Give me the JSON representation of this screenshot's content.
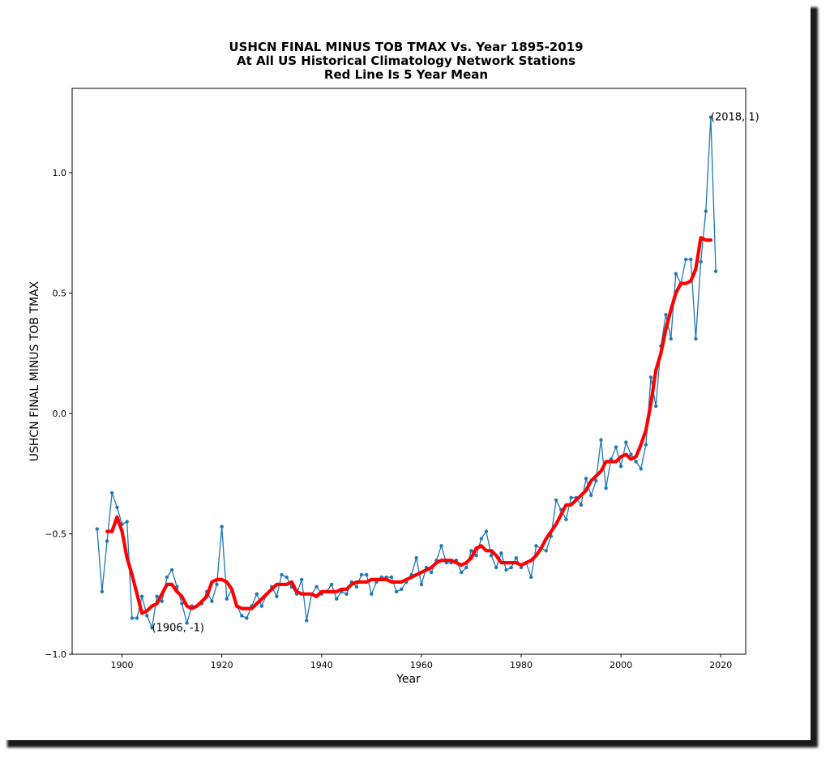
{
  "chart_data": {
    "type": "line",
    "title": [
      "USHCN FINAL MINUS TOB TMAX Vs. Year 1895-2019",
      "At All US Historical Climatology Network Stations",
      "Red Line Is 5 Year Mean"
    ],
    "xlabel": "Year",
    "ylabel": "USHCN FINAL MINUS TOB TMAX",
    "xlim": [
      1890,
      2025
    ],
    "ylim": [
      -1.0,
      1.35
    ],
    "xticks": [
      1900,
      1920,
      1940,
      1960,
      1980,
      2000,
      2020
    ],
    "xtick_labels": [
      "1900",
      "1920",
      "1940",
      "1960",
      "1980",
      "2000",
      "2020"
    ],
    "yticks": [
      -1.0,
      -0.5,
      0.0,
      0.5,
      1.0
    ],
    "ytick_labels": [
      "−1.0",
      "−0.5",
      "0.0",
      "0.5",
      "1.0"
    ],
    "grid": false,
    "colors": {
      "series": "#1f77b4",
      "mean": "#ff0000"
    },
    "series": [
      {
        "x": [
          1895,
          1896,
          1897,
          1898,
          1899,
          1900,
          1901,
          1902,
          1903,
          1904,
          1905,
          1906,
          1907,
          1908,
          1909,
          1910,
          1911,
          1912,
          1913,
          1914,
          1915,
          1916,
          1917,
          1918,
          1919,
          1920,
          1921,
          1922,
          1923,
          1924,
          1925,
          1926,
          1927,
          1928,
          1929,
          1930,
          1931,
          1932,
          1933,
          1934,
          1935,
          1936,
          1937,
          1938,
          1939,
          1940,
          1941,
          1942,
          1943,
          1944,
          1945,
          1946,
          1947,
          1948,
          1949,
          1950,
          1951,
          1952,
          1953,
          1954,
          1955,
          1956,
          1957,
          1958,
          1959,
          1960,
          1961,
          1962,
          1963,
          1964,
          1965,
          1966,
          1967,
          1968,
          1969,
          1970,
          1971,
          1972,
          1973,
          1974,
          1975,
          1976,
          1977,
          1978,
          1979,
          1980,
          1981,
          1982,
          1983,
          1984,
          1985,
          1986,
          1987,
          1988,
          1989,
          1990,
          1991,
          1992,
          1993,
          1994,
          1995,
          1996,
          1997,
          1998,
          1999,
          2000,
          2001,
          2002,
          2003,
          2004,
          2005,
          2006,
          2007,
          2008,
          2009,
          2010,
          2011,
          2012,
          2013,
          2014,
          2015,
          2016,
          2017,
          2018,
          2019
        ],
        "y": [
          -0.48,
          -0.74,
          -0.53,
          -0.33,
          -0.39,
          -0.46,
          -0.45,
          -0.85,
          -0.85,
          -0.76,
          -0.84,
          -0.89,
          -0.76,
          -0.78,
          -0.68,
          -0.65,
          -0.72,
          -0.79,
          -0.87,
          -0.8,
          -0.8,
          -0.79,
          -0.74,
          -0.78,
          -0.71,
          -0.47,
          -0.77,
          -0.73,
          -0.8,
          -0.84,
          -0.85,
          -0.8,
          -0.75,
          -0.8,
          -0.75,
          -0.72,
          -0.76,
          -0.67,
          -0.68,
          -0.72,
          -0.75,
          -0.69,
          -0.86,
          -0.75,
          -0.72,
          -0.75,
          -0.74,
          -0.71,
          -0.77,
          -0.74,
          -0.75,
          -0.7,
          -0.72,
          -0.67,
          -0.67,
          -0.75,
          -0.7,
          -0.68,
          -0.68,
          -0.68,
          -0.74,
          -0.73,
          -0.7,
          -0.67,
          -0.6,
          -0.71,
          -0.64,
          -0.66,
          -0.61,
          -0.55,
          -0.62,
          -0.62,
          -0.61,
          -0.66,
          -0.64,
          -0.57,
          -0.59,
          -0.52,
          -0.49,
          -0.59,
          -0.64,
          -0.58,
          -0.65,
          -0.64,
          -0.6,
          -0.64,
          -0.62,
          -0.68,
          -0.55,
          -0.56,
          -0.57,
          -0.51,
          -0.36,
          -0.4,
          -0.44,
          -0.35,
          -0.35,
          -0.38,
          -0.27,
          -0.34,
          -0.28,
          -0.11,
          -0.31,
          -0.19,
          -0.14,
          -0.22,
          -0.12,
          -0.17,
          -0.2,
          -0.23,
          -0.13,
          0.15,
          0.03,
          0.28,
          0.41,
          0.31,
          0.58,
          0.54,
          0.64,
          0.64,
          0.31,
          0.63,
          0.84,
          1.23,
          0.59
        ]
      },
      {
        "name": "5 Year Mean",
        "x": [
          1897,
          1898,
          1899,
          1900,
          1901,
          1902,
          1903,
          1904,
          1905,
          1906,
          1907,
          1908,
          1909,
          1910,
          1911,
          1912,
          1913,
          1914,
          1915,
          1916,
          1917,
          1918,
          1919,
          1920,
          1921,
          1922,
          1923,
          1924,
          1925,
          1926,
          1927,
          1928,
          1929,
          1930,
          1931,
          1932,
          1933,
          1934,
          1935,
          1936,
          1937,
          1938,
          1939,
          1940,
          1941,
          1942,
          1943,
          1944,
          1945,
          1946,
          1947,
          1948,
          1949,
          1950,
          1951,
          1952,
          1953,
          1954,
          1955,
          1956,
          1957,
          1958,
          1959,
          1960,
          1961,
          1962,
          1963,
          1964,
          1965,
          1966,
          1967,
          1968,
          1969,
          1970,
          1971,
          1972,
          1973,
          1974,
          1975,
          1976,
          1977,
          1978,
          1979,
          1980,
          1981,
          1982,
          1983,
          1984,
          1985,
          1986,
          1987,
          1988,
          1989,
          1990,
          1991,
          1992,
          1993,
          1994,
          1995,
          1996,
          1997,
          1998,
          1999,
          2000,
          2001,
          2002,
          2003,
          2004,
          2005,
          2006,
          2007,
          2008,
          2009,
          2010,
          2011,
          2012,
          2013,
          2014,
          2015,
          2016,
          2017,
          2018
        ],
        "y": [
          -0.49,
          -0.49,
          -0.43,
          -0.49,
          -0.6,
          -0.67,
          -0.75,
          -0.83,
          -0.82,
          -0.8,
          -0.79,
          -0.75,
          -0.71,
          -0.71,
          -0.74,
          -0.76,
          -0.8,
          -0.81,
          -0.8,
          -0.78,
          -0.76,
          -0.7,
          -0.69,
          -0.69,
          -0.7,
          -0.73,
          -0.8,
          -0.81,
          -0.81,
          -0.81,
          -0.79,
          -0.77,
          -0.75,
          -0.73,
          -0.71,
          -0.71,
          -0.71,
          -0.7,
          -0.74,
          -0.75,
          -0.75,
          -0.75,
          -0.76,
          -0.74,
          -0.74,
          -0.74,
          -0.74,
          -0.73,
          -0.73,
          -0.71,
          -0.7,
          -0.7,
          -0.7,
          -0.69,
          -0.69,
          -0.69,
          -0.69,
          -0.7,
          -0.7,
          -0.7,
          -0.69,
          -0.68,
          -0.67,
          -0.66,
          -0.65,
          -0.64,
          -0.62,
          -0.61,
          -0.61,
          -0.61,
          -0.62,
          -0.63,
          -0.62,
          -0.6,
          -0.56,
          -0.55,
          -0.57,
          -0.57,
          -0.59,
          -0.62,
          -0.62,
          -0.62,
          -0.62,
          -0.63,
          -0.62,
          -0.61,
          -0.59,
          -0.56,
          -0.52,
          -0.49,
          -0.46,
          -0.42,
          -0.38,
          -0.38,
          -0.36,
          -0.34,
          -0.32,
          -0.28,
          -0.26,
          -0.24,
          -0.2,
          -0.2,
          -0.2,
          -0.18,
          -0.17,
          -0.19,
          -0.18,
          -0.13,
          -0.07,
          0.04,
          0.18,
          0.25,
          0.35,
          0.43,
          0.5,
          0.54,
          0.54,
          0.55,
          0.6,
          0.73,
          0.72,
          0.72
        ]
      }
    ],
    "annotations": [
      {
        "x": 1906,
        "y": -0.89,
        "text": "(1906, -1)"
      },
      {
        "x": 2018,
        "y": 1.23,
        "text": "(2018, 1)"
      }
    ]
  }
}
